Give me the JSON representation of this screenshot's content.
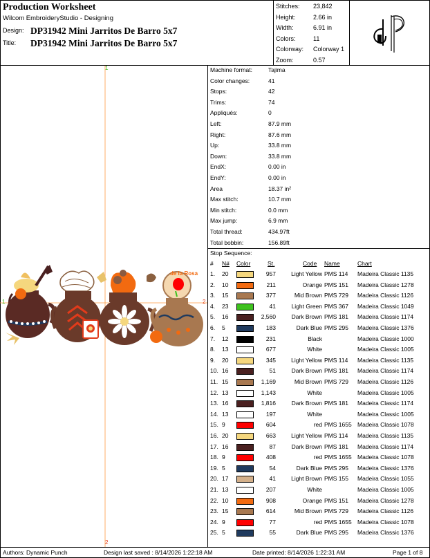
{
  "header": {
    "title": "Production Worksheet",
    "subtitle": "Wilcom EmbroideryStudio - Designing",
    "design_label": "Design:",
    "design_value": "DP31942 Mini Jarritos De Barro 5x7",
    "title_label": "Title:",
    "title_value": "DP31942 Mini Jarritos De Barro 5x7"
  },
  "metrics": [
    {
      "label": "Stitches:",
      "value": "23,842"
    },
    {
      "label": "Height:",
      "value": "2.66 in"
    },
    {
      "label": "Width:",
      "value": "6.91 in"
    },
    {
      "label": "Colors:",
      "value": "11"
    },
    {
      "label": "Colorway:",
      "value": "Colorway 1"
    },
    {
      "label": "Zoom:",
      "value": "0.57"
    }
  ],
  "logo": {
    "icon": "dp-monogram-logo"
  },
  "canvas": {
    "marker_top": "1",
    "marker_bottom": "2",
    "marker_left": "1",
    "marker_right": "2",
    "guide_color": "#ff9a40",
    "pot_label": "de la Rosa"
  },
  "properties": [
    {
      "label": "Machine format:",
      "value": "Tajima"
    },
    {
      "label": "Color changes:",
      "value": "41"
    },
    {
      "label": "Stops:",
      "value": "42"
    },
    {
      "label": "Trims:",
      "value": "74"
    },
    {
      "label": "Appliqués:",
      "value": "0"
    },
    {
      "label": "Left:",
      "value": "87.9 mm"
    },
    {
      "label": "Right:",
      "value": "87.6 mm"
    },
    {
      "label": "Up:",
      "value": "33.8 mm"
    },
    {
      "label": "Down:",
      "value": "33.8 mm"
    },
    {
      "label": "EndX:",
      "value": "0.00 in"
    },
    {
      "label": "EndY:",
      "value": "0.00 in"
    },
    {
      "label": "Area",
      "value": "18.37 in²"
    },
    {
      "label": "Max stitch:",
      "value": "10.7 mm"
    },
    {
      "label": "Min stitch:",
      "value": "0.0 mm"
    },
    {
      "label": "Max jump:",
      "value": "6.9 mm"
    },
    {
      "label": "Total thread:",
      "value": "434.97ft"
    },
    {
      "label": "Total bobbin:",
      "value": "156.89ft"
    }
  ],
  "stop_sequence": {
    "title": "Stop Sequence:",
    "columns": {
      "num": "#",
      "needle": "N#",
      "color": "Color",
      "st": "St.",
      "code": "Code",
      "name": "Name",
      "chart": "Chart"
    },
    "rows": [
      {
        "num": "1.",
        "needle": "20",
        "color": "#f5d77e",
        "st": "957",
        "code": "Light Yellow",
        "name": "PMS 114",
        "chart": "Madeira Classic 1135"
      },
      {
        "num": "2.",
        "needle": "10",
        "color": "#f26a10",
        "st": "211",
        "code": "Orange",
        "name": "PMS 151",
        "chart": "Madeira Classic 1278"
      },
      {
        "num": "3.",
        "needle": "15",
        "color": "#a87850",
        "st": "377",
        "code": "Mid Brown",
        "name": "PMS 729",
        "chart": "Madeira Classic 1126"
      },
      {
        "num": "4.",
        "needle": "23",
        "color": "#3ec21e",
        "st": "41",
        "code": "Light Green",
        "name": "PMS 367",
        "chart": "Madeira Classic 1049"
      },
      {
        "num": "5.",
        "needle": "16",
        "color": "#4a2020",
        "st": "2,560",
        "code": "Dark Brown",
        "name": "PMS 181",
        "chart": "Madeira Classic 1174"
      },
      {
        "num": "6.",
        "needle": "5",
        "color": "#1f3a5e",
        "st": "183",
        "code": "Dark Blue",
        "name": "PMS 295",
        "chart": "Madeira Classic 1376"
      },
      {
        "num": "7.",
        "needle": "12",
        "color": "#000000",
        "st": "231",
        "code": "Black",
        "name": "",
        "chart": "Madeira Classic 1000"
      },
      {
        "num": "8.",
        "needle": "13",
        "color": "#ffffff",
        "st": "677",
        "code": "White",
        "name": "",
        "chart": "Madeira Classic 1005"
      },
      {
        "num": "9.",
        "needle": "20",
        "color": "#f5d77e",
        "st": "345",
        "code": "Light Yellow",
        "name": "PMS 114",
        "chart": "Madeira Classic 1135"
      },
      {
        "num": "10.",
        "needle": "16",
        "color": "#4a2020",
        "st": "51",
        "code": "Dark Brown",
        "name": "PMS 181",
        "chart": "Madeira Classic 1174"
      },
      {
        "num": "11.",
        "needle": "15",
        "color": "#a87850",
        "st": "1,169",
        "code": "Mid Brown",
        "name": "PMS 729",
        "chart": "Madeira Classic 1126"
      },
      {
        "num": "12.",
        "needle": "13",
        "color": "#ffffff",
        "st": "1,143",
        "code": "White",
        "name": "",
        "chart": "Madeira Classic 1005"
      },
      {
        "num": "13.",
        "needle": "16",
        "color": "#4a2020",
        "st": "1,816",
        "code": "Dark Brown",
        "name": "PMS 181",
        "chart": "Madeira Classic 1174"
      },
      {
        "num": "14.",
        "needle": "13",
        "color": "#ffffff",
        "st": "197",
        "code": "White",
        "name": "",
        "chart": "Madeira Classic 1005"
      },
      {
        "num": "15.",
        "needle": "9",
        "color": "#ff0000",
        "st": "604",
        "code": "red",
        "name": "PMS 1655",
        "chart": "Madeira Classic 1078"
      },
      {
        "num": "16.",
        "needle": "20",
        "color": "#f5d77e",
        "st": "663",
        "code": "Light Yellow",
        "name": "PMS 114",
        "chart": "Madeira Classic 1135"
      },
      {
        "num": "17.",
        "needle": "16",
        "color": "#4a2020",
        "st": "87",
        "code": "Dark Brown",
        "name": "PMS 181",
        "chart": "Madeira Classic 1174"
      },
      {
        "num": "18.",
        "needle": "9",
        "color": "#ff0000",
        "st": "408",
        "code": "red",
        "name": "PMS 1655",
        "chart": "Madeira Classic 1078"
      },
      {
        "num": "19.",
        "needle": "5",
        "color": "#1f3a5e",
        "st": "54",
        "code": "Dark Blue",
        "name": "PMS 295",
        "chart": "Madeira Classic 1376"
      },
      {
        "num": "20.",
        "needle": "17",
        "color": "#d4b08a",
        "st": "41",
        "code": "Light Brown",
        "name": "PMS 155",
        "chart": "Madeira Classic 1055"
      },
      {
        "num": "21.",
        "needle": "13",
        "color": "#ffffff",
        "st": "207",
        "code": "White",
        "name": "",
        "chart": "Madeira Classic 1005"
      },
      {
        "num": "22.",
        "needle": "10",
        "color": "#f26a10",
        "st": "908",
        "code": "Orange",
        "name": "PMS 151",
        "chart": "Madeira Classic 1278"
      },
      {
        "num": "23.",
        "needle": "15",
        "color": "#a87850",
        "st": "614",
        "code": "Mid Brown",
        "name": "PMS 729",
        "chart": "Madeira Classic 1126"
      },
      {
        "num": "24.",
        "needle": "9",
        "color": "#ff0000",
        "st": "77",
        "code": "red",
        "name": "PMS 1655",
        "chart": "Madeira Classic 1078"
      },
      {
        "num": "25.",
        "needle": "5",
        "color": "#1f3a5e",
        "st": "55",
        "code": "Dark Blue",
        "name": "PMS 295",
        "chart": "Madeira Classic 1376"
      }
    ]
  },
  "footer": {
    "authors": "Authors: Dynamic Punch",
    "saved": "Design last saved : 8/14/2026 1:22:18 AM",
    "printed": "Date printed: 8/14/2026 1:22:31 AM",
    "page": "Page 1 of 8"
  }
}
